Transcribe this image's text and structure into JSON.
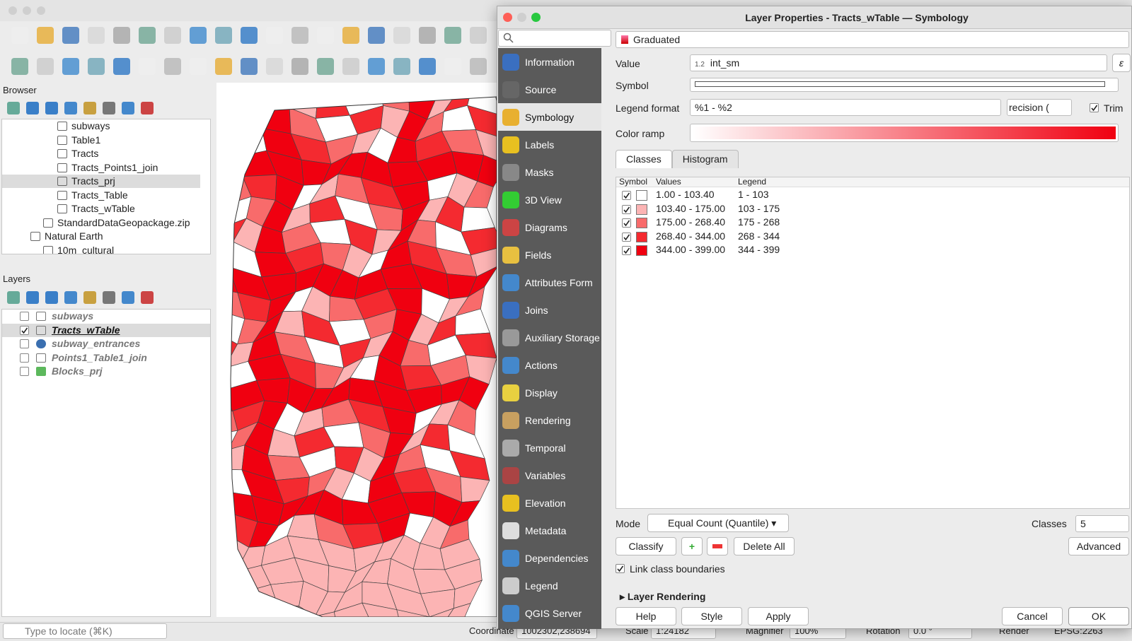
{
  "browser": {
    "title": "Browser",
    "items": [
      "subways",
      "Table1",
      "Tracts",
      "Tracts_Points1_join",
      "Tracts_prj",
      "Tracts_Table",
      "Tracts_wTable",
      "StandardDataGeopackage.zip",
      "Natural Earth",
      "10m_cultural"
    ]
  },
  "layers": {
    "title": "Layers",
    "items": [
      {
        "name": "subways",
        "checked": false
      },
      {
        "name": "Tracts_wTable",
        "checked": true
      },
      {
        "name": "subway_entrances",
        "checked": false
      },
      {
        "name": "Points1_Table1_join",
        "checked": false
      },
      {
        "name": "Blocks_prj",
        "checked": false
      }
    ]
  },
  "locator": "Type to locate (⌘K)",
  "status": {
    "coordinate_label": "Coordinate",
    "coordinate": "1002302,238694",
    "scale_label": "Scale",
    "scale": "1:24182",
    "magnifier_label": "Magnifier",
    "magnifier": "100%",
    "rotation_label": "Rotation",
    "rotation": "0.0 °",
    "render": "Render",
    "crs": "EPSG:2263"
  },
  "dialog": {
    "title": "Layer Properties - Tracts_wTable — Symbology",
    "sidebar": [
      "Information",
      "Source",
      "Symbology",
      "Labels",
      "Masks",
      "3D View",
      "Diagrams",
      "Fields",
      "Attributes Form",
      "Joins",
      "Auxiliary Storage",
      "Actions",
      "Display",
      "Rendering",
      "Temporal",
      "Variables",
      "Elevation",
      "Metadata",
      "Dependencies",
      "Legend",
      "QGIS Server"
    ],
    "renderer": "Graduated",
    "value_label": "Value",
    "value_type": "1.2",
    "value": "int_sm",
    "symbol_label": "Symbol",
    "legend_format_label": "Legend format",
    "legend_format": "%1 - %2",
    "precision": "recision (",
    "trim": "Trim",
    "color_ramp_label": "Color ramp",
    "tabs": [
      "Classes",
      "Histogram"
    ],
    "columns": [
      "Symbol",
      "Values",
      "Legend"
    ],
    "classes": [
      {
        "values": "1.00 - 103.40",
        "legend": "1 - 103",
        "color": "#ffffff"
      },
      {
        "values": "103.40 - 175.00",
        "legend": "103 - 175",
        "color": "#fcb4b4"
      },
      {
        "values": "175.00 - 268.40",
        "legend": "175 - 268",
        "color": "#f86b6b"
      },
      {
        "values": "268.40 - 344.00",
        "legend": "268 - 344",
        "color": "#f42a30"
      },
      {
        "values": "344.00 - 399.00",
        "legend": "344 - 399",
        "color": "#f00010"
      }
    ],
    "mode_label": "Mode",
    "mode": "Equal Count (Quantile)",
    "classes_label": "Classes",
    "classes_count": "5",
    "classify": "Classify",
    "delete_all": "Delete All",
    "advanced": "Advanced",
    "link": "Link class boundaries",
    "layer_rendering": "Layer Rendering",
    "help": "Help",
    "style": "Style",
    "apply": "Apply",
    "cancel": "Cancel",
    "ok": "OK"
  }
}
